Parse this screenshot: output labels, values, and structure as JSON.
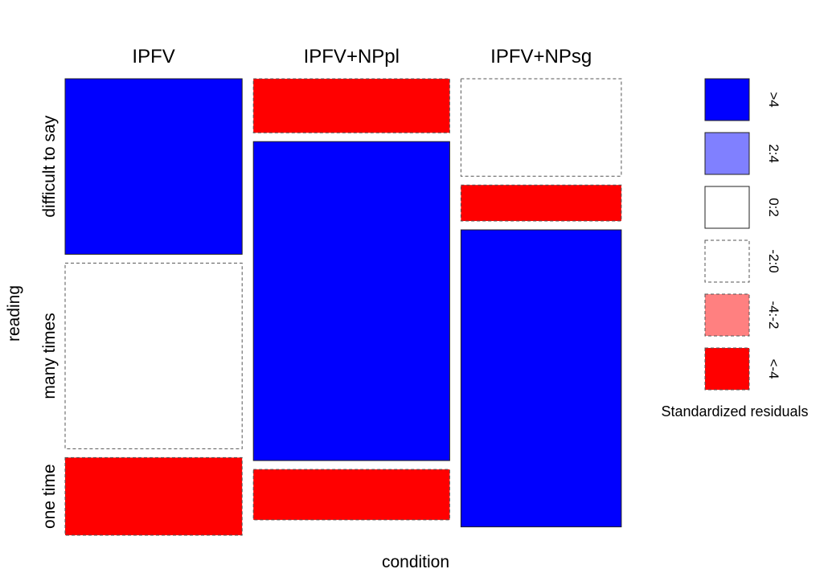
{
  "chart_data": {
    "type": "mosaic",
    "xlabel": "condition",
    "ylabel": "reading",
    "columns": [
      "IPFV",
      "IPFV+NPpl",
      "IPFV+NPsg"
    ],
    "rows": [
      "difficult to say",
      "many times",
      "one time"
    ],
    "column_shares": [
      0.32,
      0.355,
      0.29
    ],
    "row_shares": [
      [
        0.4,
        0.423,
        0.177
      ],
      [
        0.123,
        0.727,
        0.115
      ],
      [
        0.222,
        0.082,
        0.677
      ]
    ],
    "residual_classes": [
      [
        ">4",
        "-2:0",
        "<-4"
      ],
      [
        "<-4",
        ">4",
        "<-4"
      ],
      [
        "-2:0",
        "<-4",
        ">4"
      ]
    ],
    "legend": {
      "title": "Standardized residuals",
      "items": [
        {
          "label": ">4",
          "fill": "#0000FF",
          "dashed": false
        },
        {
          "label": "2:4",
          "fill": "#8080FF",
          "dashed": false
        },
        {
          "label": "0:2",
          "fill": "#FFFFFF",
          "dashed": false
        },
        {
          "label": "-2:0",
          "fill": "#FFFFFF",
          "dashed": true
        },
        {
          "label": "-4:-2",
          "fill": "#FF8080",
          "dashed": true
        },
        {
          "label": "<-4",
          "fill": "#FF0000",
          "dashed": true
        }
      ]
    }
  }
}
